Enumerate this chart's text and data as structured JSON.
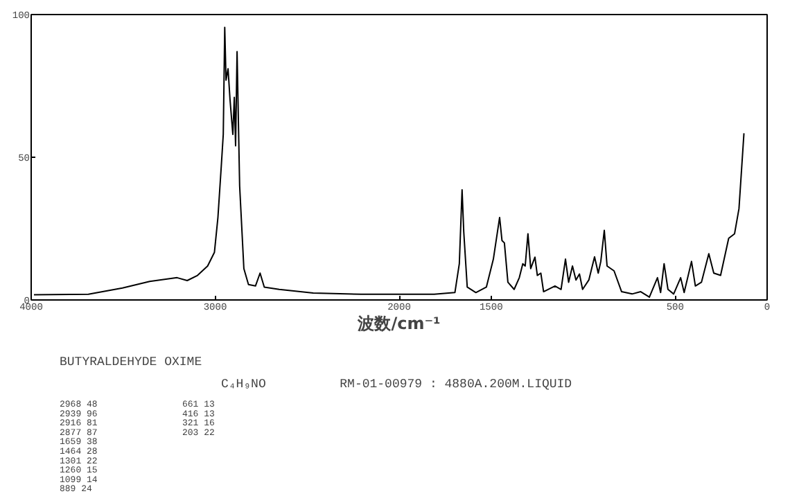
{
  "chart_data": {
    "type": "line",
    "title": "BUTYRALDEHYDE OXIME",
    "xlabel": "波数/cm⁻¹",
    "x": [
      3985,
      3689,
      3504,
      3356,
      3207,
      3152,
      3096,
      3041,
      3004,
      2985,
      2967,
      2956,
      2948,
      2941,
      2930,
      2919,
      2904,
      2896,
      2889,
      2881,
      2867,
      2844,
      2819,
      2781,
      2756,
      2733,
      2652,
      2467,
      2207,
      2000,
      1810,
      1697,
      1673,
      1658,
      1649,
      1630,
      1583,
      1526,
      1488,
      1454,
      1441,
      1428,
      1409,
      1375,
      1347,
      1328,
      1315,
      1300,
      1285,
      1262,
      1249,
      1230,
      1215,
      1153,
      1120,
      1096,
      1079,
      1058,
      1039,
      1020,
      1003,
      969,
      938,
      918,
      904,
      885,
      870,
      832,
      791,
      734,
      687,
      640,
      596,
      579,
      560,
      539,
      508,
      470,
      451,
      411,
      390,
      357,
      317,
      290,
      253,
      209,
      177,
      153,
      126
    ],
    "series": [
      {
        "color": "#000000",
        "values": [
          1.8,
          2,
          4.2,
          6.5,
          7.8,
          6.8,
          8.6,
          11.9,
          16.7,
          28.9,
          46.7,
          58,
          95.5,
          77,
          81,
          70,
          58,
          71,
          54,
          87,
          40,
          11,
          5.4,
          4.9,
          9.4,
          4.5,
          3.7,
          2.4,
          2,
          2,
          2,
          2.6,
          12.7,
          38.6,
          24,
          4.5,
          2.6,
          4.5,
          14.3,
          28.9,
          20.8,
          20,
          6.2,
          3.7,
          7.8,
          12.7,
          11.9,
          23.2,
          11,
          15,
          8.6,
          9.4,
          2.9,
          4.9,
          3.7,
          14.3,
          6.2,
          11.9,
          7,
          9.1,
          3.7,
          7,
          15.1,
          9.4,
          13.5,
          24.4,
          11.9,
          10.2,
          2.9,
          2.1,
          2.9,
          1,
          7.8,
          2.6,
          12.7,
          3.7,
          2.1,
          7.8,
          2.6,
          13.5,
          4.9,
          6.2,
          16.2,
          9.4,
          8.6,
          21.6,
          23.2,
          32,
          58.4
        ]
      }
    ],
    "xlim": [
      4000,
      0
    ],
    "ylim": [
      0,
      100
    ],
    "xticks": [
      4000,
      3000,
      2000,
      1500,
      500,
      0
    ],
    "yticks": [
      0,
      50,
      100
    ],
    "grid": false,
    "marker": "none",
    "line_style": "solid",
    "annotations": [
      "C₄H₉NO",
      "RM-01-00979 : 4880A.200M.LIQUID",
      "2968    48",
      "2939    96",
      "2916    81",
      "2877    87",
      "1659    38",
      "1464    28",
      "1301    22",
      "1260    15",
      "1099    14",
      " 889    24",
      "661    13",
      "416    13",
      "321    16",
      "203    22"
    ]
  }
}
